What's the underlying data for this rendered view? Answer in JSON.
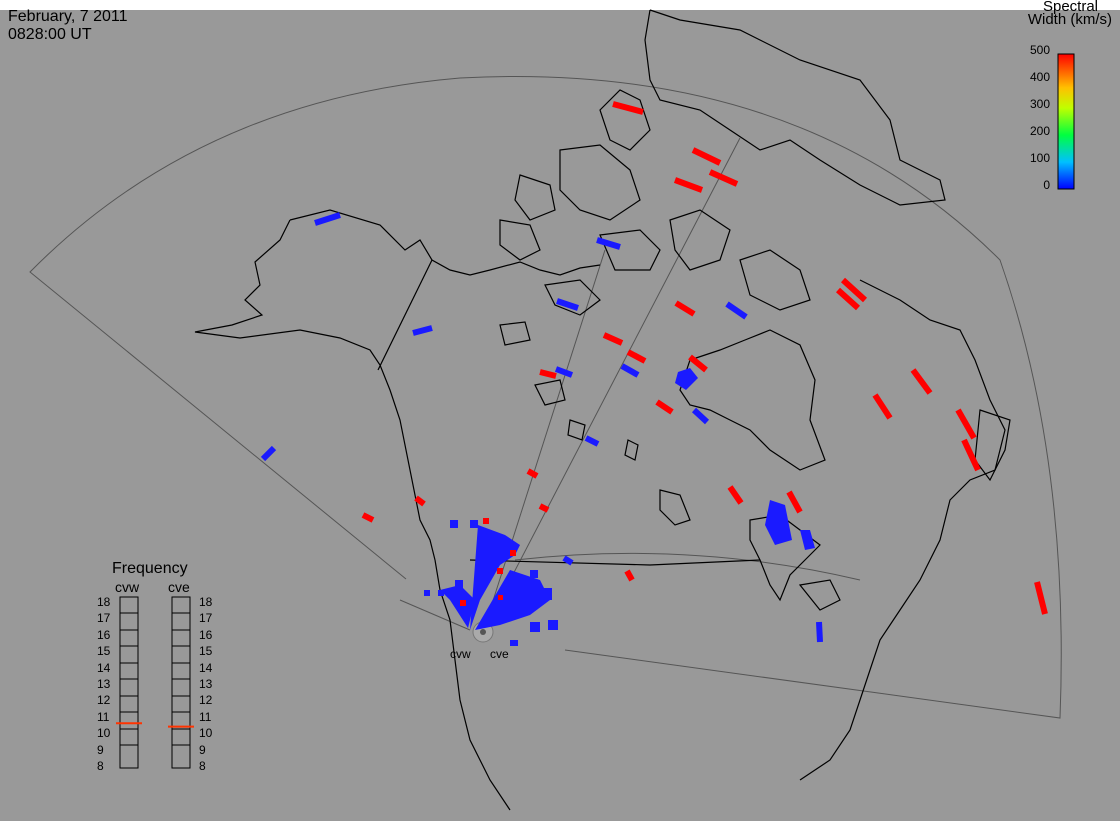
{
  "header": {
    "date": "February, 7 2011",
    "time": "0828:00 UT"
  },
  "colorbar": {
    "title_line1": "Spectral",
    "title_line2": "Width (km/s)",
    "ticks": [
      "500",
      "400",
      "300",
      "200",
      "100",
      "0"
    ]
  },
  "frequency_panel": {
    "title": "Frequency",
    "radars": [
      {
        "name": "cvw",
        "frequency_mhz": 10.8,
        "indicator_color": "#ff3300"
      },
      {
        "name": "cve",
        "frequency_mhz": 10.6,
        "indicator_color": "#ff3300"
      }
    ],
    "scale": [
      "18",
      "17",
      "16",
      "15",
      "14",
      "13",
      "12",
      "11",
      "10",
      "9",
      "8"
    ]
  },
  "radar_sites": [
    {
      "label": "cvw"
    },
    {
      "label": "cve"
    }
  ],
  "colors": {
    "background": "#999999",
    "low_width": "#1a1aff",
    "high_width": "#ff0000",
    "coastline": "#000000"
  }
}
